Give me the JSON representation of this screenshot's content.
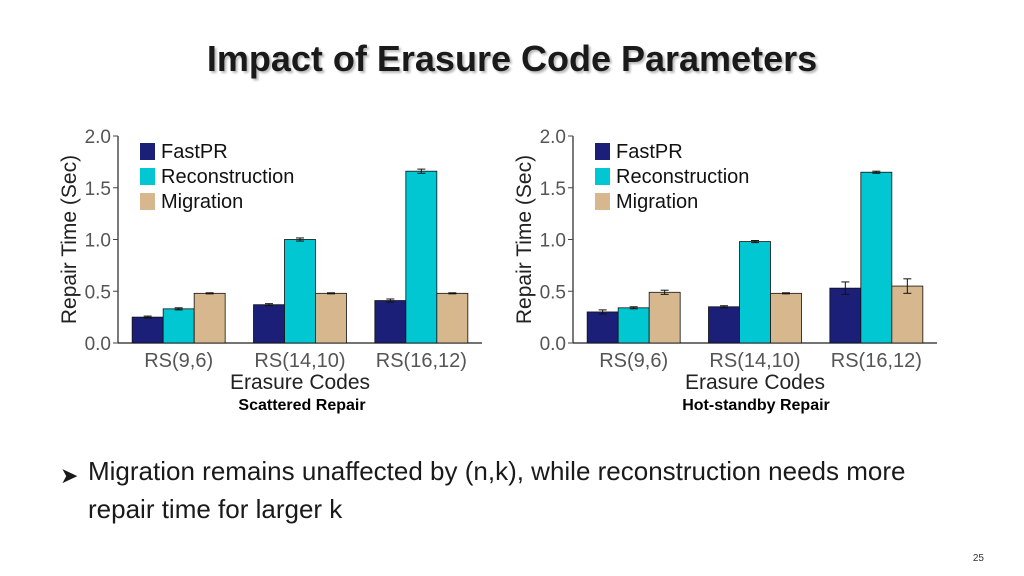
{
  "slide": {
    "title": "Impact of Erasure Code Parameters",
    "bullet": "Migration remains unaffected by (n,k), while reconstruction needs more repair time for larger k",
    "page_number": "25"
  },
  "colors": {
    "fastpr": "#1c1f78",
    "reconstruction": "#00c7d2",
    "migration": "#d6b78e"
  },
  "chart_data": [
    {
      "type": "bar",
      "caption": "Scattered Repair",
      "xlabel": "Erasure Codes",
      "ylabel": "Repair Time (Sec)",
      "ylim": [
        0,
        2.0
      ],
      "yticks": [
        "0.0",
        "0.5",
        "1.0",
        "1.5",
        "2.0"
      ],
      "categories": [
        "RS(9,6)",
        "RS(14,10)",
        "RS(16,12)"
      ],
      "legend_position": "top-left",
      "series": [
        {
          "name": "FastPR",
          "values": [
            0.25,
            0.37,
            0.41
          ],
          "errors": [
            0.01,
            0.01,
            0.015
          ]
        },
        {
          "name": "Reconstruction",
          "values": [
            0.33,
            1.0,
            1.66
          ],
          "errors": [
            0.01,
            0.015,
            0.02
          ]
        },
        {
          "name": "Migration",
          "values": [
            0.48,
            0.48,
            0.48
          ],
          "errors": [
            0.005,
            0.005,
            0.005
          ]
        }
      ]
    },
    {
      "type": "bar",
      "caption": "Hot-standby Repair",
      "xlabel": "Erasure Codes",
      "ylabel": "Repair Time (Sec)",
      "ylim": [
        0,
        2.0
      ],
      "yticks": [
        "0.0",
        "0.5",
        "1.0",
        "1.5",
        "2.0"
      ],
      "categories": [
        "RS(9,6)",
        "RS(14,10)",
        "RS(16,12)"
      ],
      "legend_position": "top-left",
      "series": [
        {
          "name": "FastPR",
          "values": [
            0.3,
            0.35,
            0.53
          ],
          "errors": [
            0.02,
            0.01,
            0.06
          ]
        },
        {
          "name": "Reconstruction",
          "values": [
            0.34,
            0.98,
            1.65
          ],
          "errors": [
            0.01,
            0.01,
            0.01
          ]
        },
        {
          "name": "Migration",
          "values": [
            0.49,
            0.48,
            0.55
          ],
          "errors": [
            0.02,
            0.005,
            0.07
          ]
        }
      ]
    }
  ]
}
